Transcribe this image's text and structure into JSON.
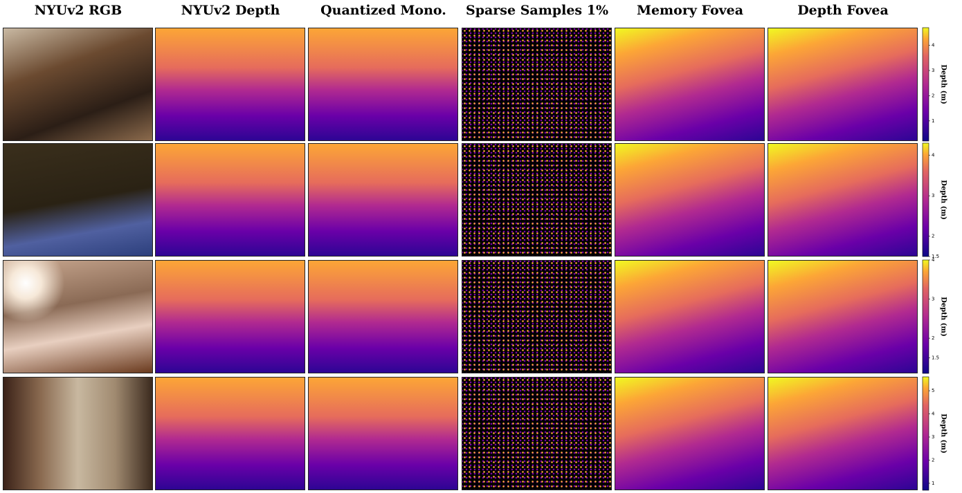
{
  "headers": [
    "NYUv2 RGB",
    "NYUv2 Depth",
    "Quantized Mono.",
    "Sparse Samples 1%",
    "Memory Fovea",
    "Depth Fovea"
  ],
  "colorbars": [
    {
      "label": "Depth (m)",
      "ylim": [
        0.2,
        4.7
      ],
      "yticks": [
        1,
        2,
        3,
        4
      ]
    },
    {
      "label": "Depth (m)",
      "ylim": [
        1.5,
        4.3
      ],
      "yticks": [
        1.5,
        2,
        3,
        4
      ]
    },
    {
      "label": "Depth (m)",
      "ylim": [
        1.1,
        4.0
      ],
      "yticks": [
        1.5,
        2,
        3,
        4
      ]
    },
    {
      "label": "Depth (m)",
      "ylim": [
        0.7,
        5.6
      ],
      "yticks": [
        1,
        2,
        3,
        4,
        5
      ]
    }
  ]
}
